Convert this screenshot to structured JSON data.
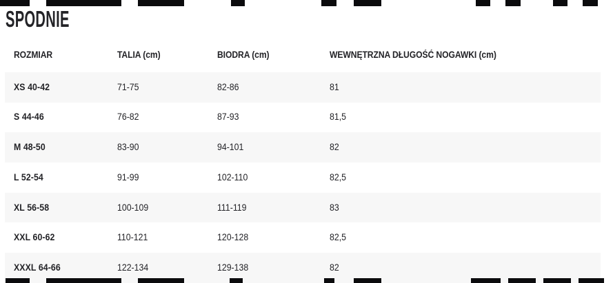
{
  "title": "SPODNIE",
  "table": {
    "columns": [
      {
        "key": "size",
        "label": "ROZMIAR"
      },
      {
        "key": "talia",
        "label": "TALIA (cm)"
      },
      {
        "key": "biodra",
        "label": "BIODRA (cm)"
      },
      {
        "key": "nogawka",
        "label": "WEWNĘTRZNA DŁUGOŚĆ NOGAWKI (cm)"
      }
    ],
    "rows": [
      {
        "size": "XS 40-42",
        "talia": "71-75",
        "biodra": "82-86",
        "nogawka": "81"
      },
      {
        "size": "S 44-46",
        "talia": "76-82",
        "biodra": "87-93",
        "nogawka": "81,5"
      },
      {
        "size": "M 48-50",
        "talia": "83-90",
        "biodra": "94-101",
        "nogawka": "82"
      },
      {
        "size": "L 52-54",
        "talia": "91-99",
        "biodra": "102-110",
        "nogawka": "82,5"
      },
      {
        "size": "XL 56-58",
        "talia": "100-109",
        "biodra": "111-119",
        "nogawka": "83"
      },
      {
        "size": "XXL 60-62",
        "talia": "110-121",
        "biodra": "120-128",
        "nogawka": "82,5"
      },
      {
        "size": "XXXL 64-66",
        "talia": "122-134",
        "biodra": "129-138",
        "nogawka": "82"
      }
    ]
  },
  "colors": {
    "background": "#ffffff",
    "stripe": "#f7f7f7",
    "text": "#232327",
    "bar": "#0b0b0d"
  }
}
